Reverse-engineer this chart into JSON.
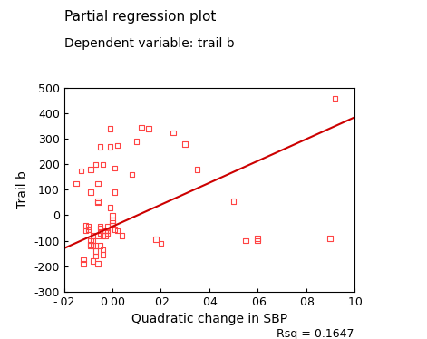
{
  "title": "Partial regression plot",
  "subtitle": "Dependent variable: trail b",
  "xlabel": "Quadratic change in SBP",
  "ylabel": "Trail b",
  "rsq_label": "Rsq = 0.1647",
  "xlim": [
    -0.02,
    0.1
  ],
  "ylim": [
    -300,
    500
  ],
  "xticks": [
    -0.02,
    0.0,
    0.02,
    0.04,
    0.06,
    0.08,
    0.1
  ],
  "xtick_labels": [
    "-.02",
    "0.00",
    ".02",
    ".04",
    ".06",
    ".08",
    ".10"
  ],
  "yticks": [
    -300,
    -200,
    -100,
    0,
    100,
    200,
    300,
    400,
    500
  ],
  "scatter_color": "#FF4444",
  "line_color": "#CC0000",
  "scatter_x": [
    -0.015,
    -0.013,
    -0.012,
    -0.012,
    -0.011,
    -0.011,
    -0.01,
    -0.01,
    -0.01,
    -0.009,
    -0.009,
    -0.009,
    -0.009,
    -0.009,
    -0.008,
    -0.008,
    -0.008,
    -0.008,
    -0.007,
    -0.007,
    -0.007,
    -0.007,
    -0.006,
    -0.006,
    -0.006,
    -0.006,
    -0.006,
    -0.005,
    -0.005,
    -0.005,
    -0.005,
    -0.005,
    -0.004,
    -0.004,
    -0.004,
    -0.004,
    -0.003,
    -0.003,
    -0.003,
    -0.002,
    -0.002,
    -0.002,
    -0.001,
    -0.001,
    -0.001,
    0.0,
    0.0,
    0.0,
    0.0,
    0.001,
    0.001,
    0.001,
    0.002,
    0.002,
    0.004,
    0.008,
    0.01,
    0.012,
    0.015,
    0.018,
    0.02,
    0.025,
    0.03,
    0.035,
    0.05,
    0.055,
    0.06,
    0.06,
    0.09,
    0.092
  ],
  "scatter_y": [
    125,
    175,
    -175,
    -190,
    -40,
    -60,
    -55,
    -45,
    -55,
    -120,
    -100,
    -115,
    90,
    180,
    -180,
    -120,
    -100,
    -80,
    -140,
    -160,
    -120,
    200,
    -190,
    -80,
    50,
    55,
    125,
    -120,
    -50,
    -45,
    -70,
    270,
    -155,
    -135,
    -80,
    200,
    -80,
    -60,
    -60,
    -70,
    -45,
    -60,
    270,
    340,
    30,
    0,
    -40,
    -30,
    -20,
    90,
    -55,
    185,
    275,
    -60,
    -80,
    160,
    290,
    345,
    340,
    -95,
    -110,
    325,
    280,
    180,
    55,
    -100,
    -100,
    -90,
    -90,
    460
  ],
  "line_x": [
    -0.02,
    0.1
  ],
  "line_y": [
    -130,
    385
  ],
  "title_fontsize": 11,
  "subtitle_fontsize": 10,
  "axis_label_fontsize": 10,
  "tick_fontsize": 9
}
